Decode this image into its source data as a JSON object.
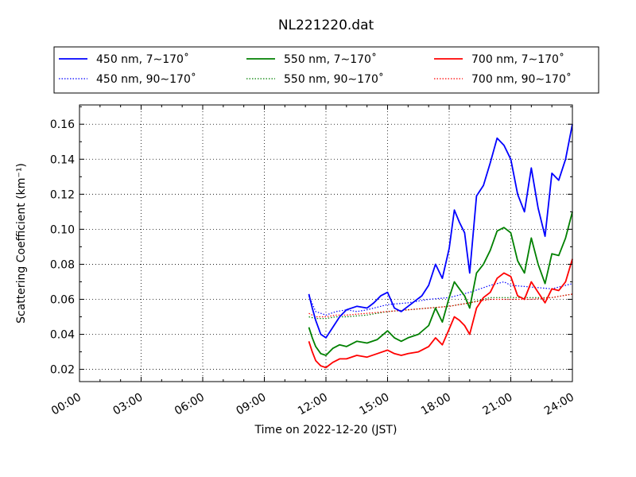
{
  "chart_data": {
    "type": "line",
    "title": "NL221220.dat",
    "xlabel": "Time on 2022-12-20 (JST)",
    "ylabel": "Scattering Coefficient (km⁻¹)",
    "xlim": [
      "00:00",
      "24:00"
    ],
    "ylim": [
      0.013,
      0.171
    ],
    "x_ticks": [
      "00:00",
      "03:00",
      "06:00",
      "09:00",
      "12:00",
      "15:00",
      "18:00",
      "21:00",
      "24:00"
    ],
    "y_ticks": [
      "0.02",
      "0.04",
      "0.06",
      "0.08",
      "0.10",
      "0.12",
      "0.14",
      "0.16"
    ],
    "grid": true,
    "legend_position": "top, above plot",
    "series": [
      {
        "name": "450 nm, 7∼170˚",
        "color": "#0000ff",
        "style": "solid",
        "x": [
          "11:10",
          "11:20",
          "11:30",
          "11:45",
          "12:00",
          "12:20",
          "12:40",
          "13:00",
          "13:30",
          "14:00",
          "14:20",
          "14:40",
          "15:00",
          "15:20",
          "15:40",
          "16:00",
          "16:20",
          "16:40",
          "17:00",
          "17:20",
          "17:40",
          "18:00",
          "18:15",
          "18:30",
          "18:45",
          "19:00",
          "19:20",
          "19:40",
          "20:00",
          "20:20",
          "20:40",
          "21:00",
          "21:20",
          "21:40",
          "22:00",
          "22:20",
          "22:40",
          "23:00",
          "23:20",
          "23:40",
          "24:00"
        ],
        "y": [
          0.063,
          0.055,
          0.048,
          0.04,
          0.038,
          0.044,
          0.05,
          0.054,
          0.056,
          0.055,
          0.058,
          0.062,
          0.064,
          0.055,
          0.053,
          0.056,
          0.059,
          0.062,
          0.068,
          0.08,
          0.072,
          0.089,
          0.111,
          0.104,
          0.098,
          0.075,
          0.119,
          0.125,
          0.138,
          0.152,
          0.148,
          0.14,
          0.12,
          0.11,
          0.135,
          0.112,
          0.096,
          0.132,
          0.128,
          0.14,
          0.16
        ]
      },
      {
        "name": "450 nm, 90∼170˚",
        "color": "#0000ff",
        "style": "dotted",
        "x": [
          "11:10",
          "11:30",
          "12:00",
          "12:30",
          "13:00",
          "13:30",
          "14:00",
          "15:00",
          "16:00",
          "17:00",
          "18:00",
          "19:00",
          "20:00",
          "20:40",
          "21:00",
          "22:00",
          "23:00",
          "24:00"
        ],
        "y": [
          0.062,
          0.053,
          0.051,
          0.053,
          0.054,
          0.053,
          0.054,
          0.057,
          0.058,
          0.06,
          0.061,
          0.064,
          0.068,
          0.07,
          0.068,
          0.067,
          0.066,
          0.069
        ]
      },
      {
        "name": "550 nm, 7∼170˚",
        "color": "#008000",
        "style": "solid",
        "x": [
          "11:10",
          "11:20",
          "11:30",
          "11:45",
          "12:00",
          "12:20",
          "12:40",
          "13:00",
          "13:30",
          "14:00",
          "14:30",
          "15:00",
          "15:20",
          "15:40",
          "16:00",
          "16:30",
          "17:00",
          "17:20",
          "17:40",
          "18:00",
          "18:15",
          "18:30",
          "18:45",
          "19:00",
          "19:20",
          "19:40",
          "20:00",
          "20:20",
          "20:40",
          "21:00",
          "21:20",
          "21:40",
          "22:00",
          "22:20",
          "22:40",
          "23:00",
          "23:20",
          "23:40",
          "24:00"
        ],
        "y": [
          0.044,
          0.038,
          0.033,
          0.029,
          0.028,
          0.032,
          0.034,
          0.033,
          0.036,
          0.035,
          0.037,
          0.042,
          0.038,
          0.036,
          0.038,
          0.04,
          0.045,
          0.055,
          0.047,
          0.061,
          0.07,
          0.066,
          0.062,
          0.055,
          0.075,
          0.08,
          0.088,
          0.099,
          0.101,
          0.098,
          0.082,
          0.075,
          0.095,
          0.08,
          0.069,
          0.086,
          0.085,
          0.095,
          0.11
        ]
      },
      {
        "name": "550 nm, 90∼170˚",
        "color": "#008000",
        "style": "dotted",
        "x": [
          "11:10",
          "11:30",
          "12:00",
          "12:30",
          "13:00",
          "14:00",
          "15:00",
          "16:00",
          "17:00",
          "18:00",
          "19:00",
          "20:00",
          "21:00",
          "22:00",
          "23:00",
          "24:00"
        ],
        "y": [
          0.05,
          0.049,
          0.049,
          0.05,
          0.05,
          0.051,
          0.053,
          0.054,
          0.055,
          0.056,
          0.058,
          0.061,
          0.061,
          0.061,
          0.061,
          0.063
        ]
      },
      {
        "name": "700 nm, 7∼170˚",
        "color": "#ff0000",
        "style": "solid",
        "x": [
          "11:10",
          "11:20",
          "11:30",
          "11:45",
          "12:00",
          "12:20",
          "12:40",
          "13:00",
          "13:30",
          "14:00",
          "14:30",
          "15:00",
          "15:20",
          "15:40",
          "16:00",
          "16:30",
          "17:00",
          "17:20",
          "17:40",
          "18:00",
          "18:15",
          "18:30",
          "18:45",
          "19:00",
          "19:20",
          "19:40",
          "20:00",
          "20:20",
          "20:40",
          "21:00",
          "21:20",
          "21:40",
          "22:00",
          "22:20",
          "22:40",
          "23:00",
          "23:20",
          "23:40",
          "24:00"
        ],
        "y": [
          0.036,
          0.03,
          0.025,
          0.022,
          0.021,
          0.024,
          0.026,
          0.026,
          0.028,
          0.027,
          0.029,
          0.031,
          0.029,
          0.028,
          0.029,
          0.03,
          0.033,
          0.038,
          0.034,
          0.043,
          0.05,
          0.048,
          0.045,
          0.04,
          0.055,
          0.061,
          0.064,
          0.072,
          0.075,
          0.073,
          0.062,
          0.06,
          0.07,
          0.064,
          0.058,
          0.066,
          0.065,
          0.07,
          0.083
        ]
      },
      {
        "name": "700 nm, 90∼170˚",
        "color": "#ff0000",
        "style": "dotted",
        "x": [
          "11:10",
          "11:30",
          "12:00",
          "12:30",
          "13:00",
          "14:00",
          "15:00",
          "16:00",
          "17:00",
          "18:00",
          "19:00",
          "20:00",
          "21:00",
          "22:00",
          "23:00",
          "24:00"
        ],
        "y": [
          0.052,
          0.05,
          0.05,
          0.051,
          0.051,
          0.052,
          0.053,
          0.054,
          0.055,
          0.056,
          0.058,
          0.06,
          0.06,
          0.06,
          0.061,
          0.063
        ]
      }
    ]
  }
}
